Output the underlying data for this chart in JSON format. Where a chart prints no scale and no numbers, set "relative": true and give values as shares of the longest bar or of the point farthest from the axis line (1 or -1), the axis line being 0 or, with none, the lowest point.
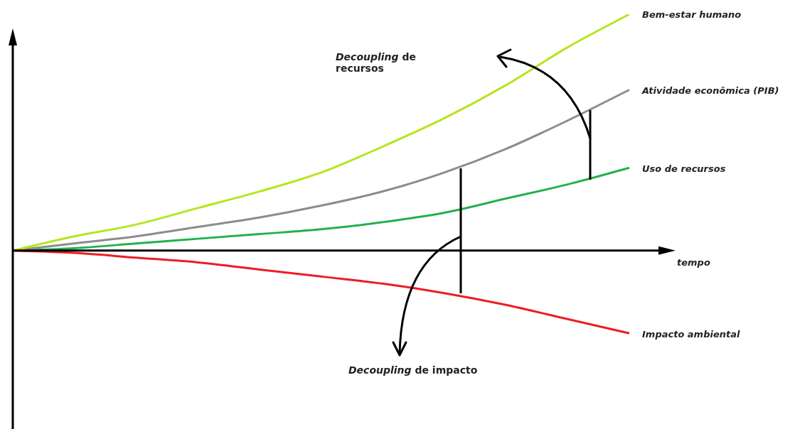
{
  "chart_data": {
    "type": "line",
    "relative": true,
    "xlabel": "tempo",
    "marker": "none",
    "categories": [
      null,
      null,
      null,
      null,
      null,
      null,
      null,
      null,
      null,
      null,
      null
    ],
    "series": [
      {
        "name": "Bem-estar humano",
        "color": "#b5e61d",
        "values": [
          0,
          0.06,
          0.11,
          0.18,
          0.25,
          0.33,
          0.44,
          0.56,
          0.7,
          0.86,
          1
        ]
      },
      {
        "name": "Atividade econômica (PIB)",
        "color": "#8c8c8c",
        "values": [
          0,
          0.03,
          0.06,
          0.1,
          0.14,
          0.19,
          0.25,
          0.33,
          0.43,
          0.55,
          0.68
        ]
      },
      {
        "name": "Uso de recursos",
        "color": "#22b14c",
        "values": [
          0,
          0.01,
          0.03,
          0.05,
          0.07,
          0.09,
          0.12,
          0.16,
          0.22,
          0.28,
          0.35
        ]
      },
      {
        "name": "Impacto ambiental",
        "color": "#ed1c24",
        "values": [
          0,
          -0.01,
          -0.03,
          -0.05,
          -0.08,
          -0.11,
          -0.14,
          -0.18,
          -0.23,
          -0.29,
          -0.35
        ]
      }
    ],
    "annotations": [
      "Decoupling de recursos",
      "Decoupling de impacto"
    ]
  }
}
